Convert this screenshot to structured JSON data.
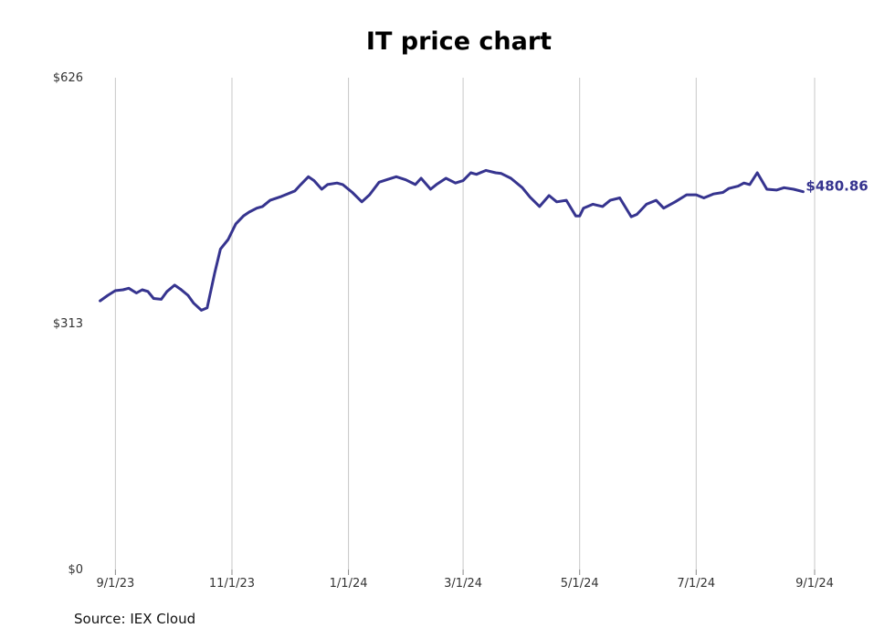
{
  "chart_data": {
    "type": "line",
    "title": "IT price chart",
    "source": "Source: IEX Cloud",
    "ylim": [
      0,
      626
    ],
    "y_ticks": [
      {
        "value": 626,
        "label": "$626"
      },
      {
        "value": 313,
        "label": "$313"
      },
      {
        "value": 0,
        "label": "$0"
      }
    ],
    "x_range": [
      "2023-08-17",
      "2024-09-12"
    ],
    "x_ticks": [
      {
        "date": "2023-09-01",
        "label": "9/1/23"
      },
      {
        "date": "2023-11-01",
        "label": "11/1/23"
      },
      {
        "date": "2024-01-01",
        "label": "1/1/24"
      },
      {
        "date": "2024-03-01",
        "label": "3/1/24"
      },
      {
        "date": "2024-05-01",
        "label": "5/1/24"
      },
      {
        "date": "2024-07-01",
        "label": "7/1/24"
      },
      {
        "date": "2024-09-01",
        "label": "9/1/24"
      }
    ],
    "grid": "vertical",
    "color": "#36348f",
    "last_value_label": "$480.86",
    "series": [
      {
        "x": [
          "2023-08-24",
          "2023-08-28",
          "2023-09-01",
          "2023-09-05",
          "2023-09-08",
          "2023-09-12",
          "2023-09-15",
          "2023-09-18",
          "2023-09-21",
          "2023-09-25",
          "2023-09-28",
          "2023-10-02",
          "2023-10-05",
          "2023-10-09",
          "2023-10-12",
          "2023-10-16",
          "2023-10-19",
          "2023-10-23",
          "2023-10-26",
          "2023-10-30",
          "2023-11-01",
          "2023-11-03",
          "2023-11-07",
          "2023-11-10",
          "2023-11-14",
          "2023-11-17",
          "2023-11-21",
          "2023-11-27",
          "2023-11-30",
          "2023-12-04",
          "2023-12-07",
          "2023-12-11",
          "2023-12-14",
          "2023-12-18",
          "2023-12-21",
          "2023-12-26",
          "2023-12-29",
          "2024-01-03",
          "2024-01-08",
          "2024-01-12",
          "2024-01-17",
          "2024-01-22",
          "2024-01-26",
          "2024-01-31",
          "2024-02-05",
          "2024-02-08",
          "2024-02-13",
          "2024-02-16",
          "2024-02-21",
          "2024-02-26",
          "2024-03-01",
          "2024-03-05",
          "2024-03-08",
          "2024-03-13",
          "2024-03-18",
          "2024-03-21",
          "2024-03-26",
          "2024-04-01",
          "2024-04-05",
          "2024-04-10",
          "2024-04-15",
          "2024-04-19",
          "2024-04-24",
          "2024-04-29",
          "2024-05-01",
          "2024-05-03",
          "2024-05-08",
          "2024-05-13",
          "2024-05-17",
          "2024-05-22",
          "2024-05-28",
          "2024-05-31",
          "2024-06-05",
          "2024-06-10",
          "2024-06-14",
          "2024-06-20",
          "2024-06-26",
          "2024-07-01",
          "2024-07-05",
          "2024-07-10",
          "2024-07-15",
          "2024-07-18",
          "2024-07-23",
          "2024-07-26",
          "2024-07-29",
          "2024-08-02",
          "2024-08-07",
          "2024-08-12",
          "2024-08-16",
          "2024-08-21",
          "2024-08-26"
        ],
        "values": [
          342,
          349,
          355,
          356,
          358,
          352,
          356,
          354,
          345,
          344,
          354,
          362,
          357,
          349,
          339,
          330,
          333,
          378,
          408,
          420,
          430,
          440,
          450,
          455,
          460,
          462,
          470,
          475,
          478,
          482,
          490,
          500,
          495,
          484,
          490,
          492,
          490,
          480,
          468,
          477,
          493,
          497,
          500,
          496,
          490,
          498,
          484,
          490,
          498,
          492,
          495,
          505,
          503,
          508,
          505,
          504,
          498,
          486,
          474,
          462,
          476,
          468,
          470,
          450,
          450,
          460,
          465,
          462,
          470,
          473,
          449,
          452,
          465,
          470,
          460,
          468,
          477,
          477,
          473,
          478,
          480,
          485,
          488,
          492,
          490,
          505,
          484,
          483,
          486,
          484,
          480.86
        ]
      }
    ]
  }
}
